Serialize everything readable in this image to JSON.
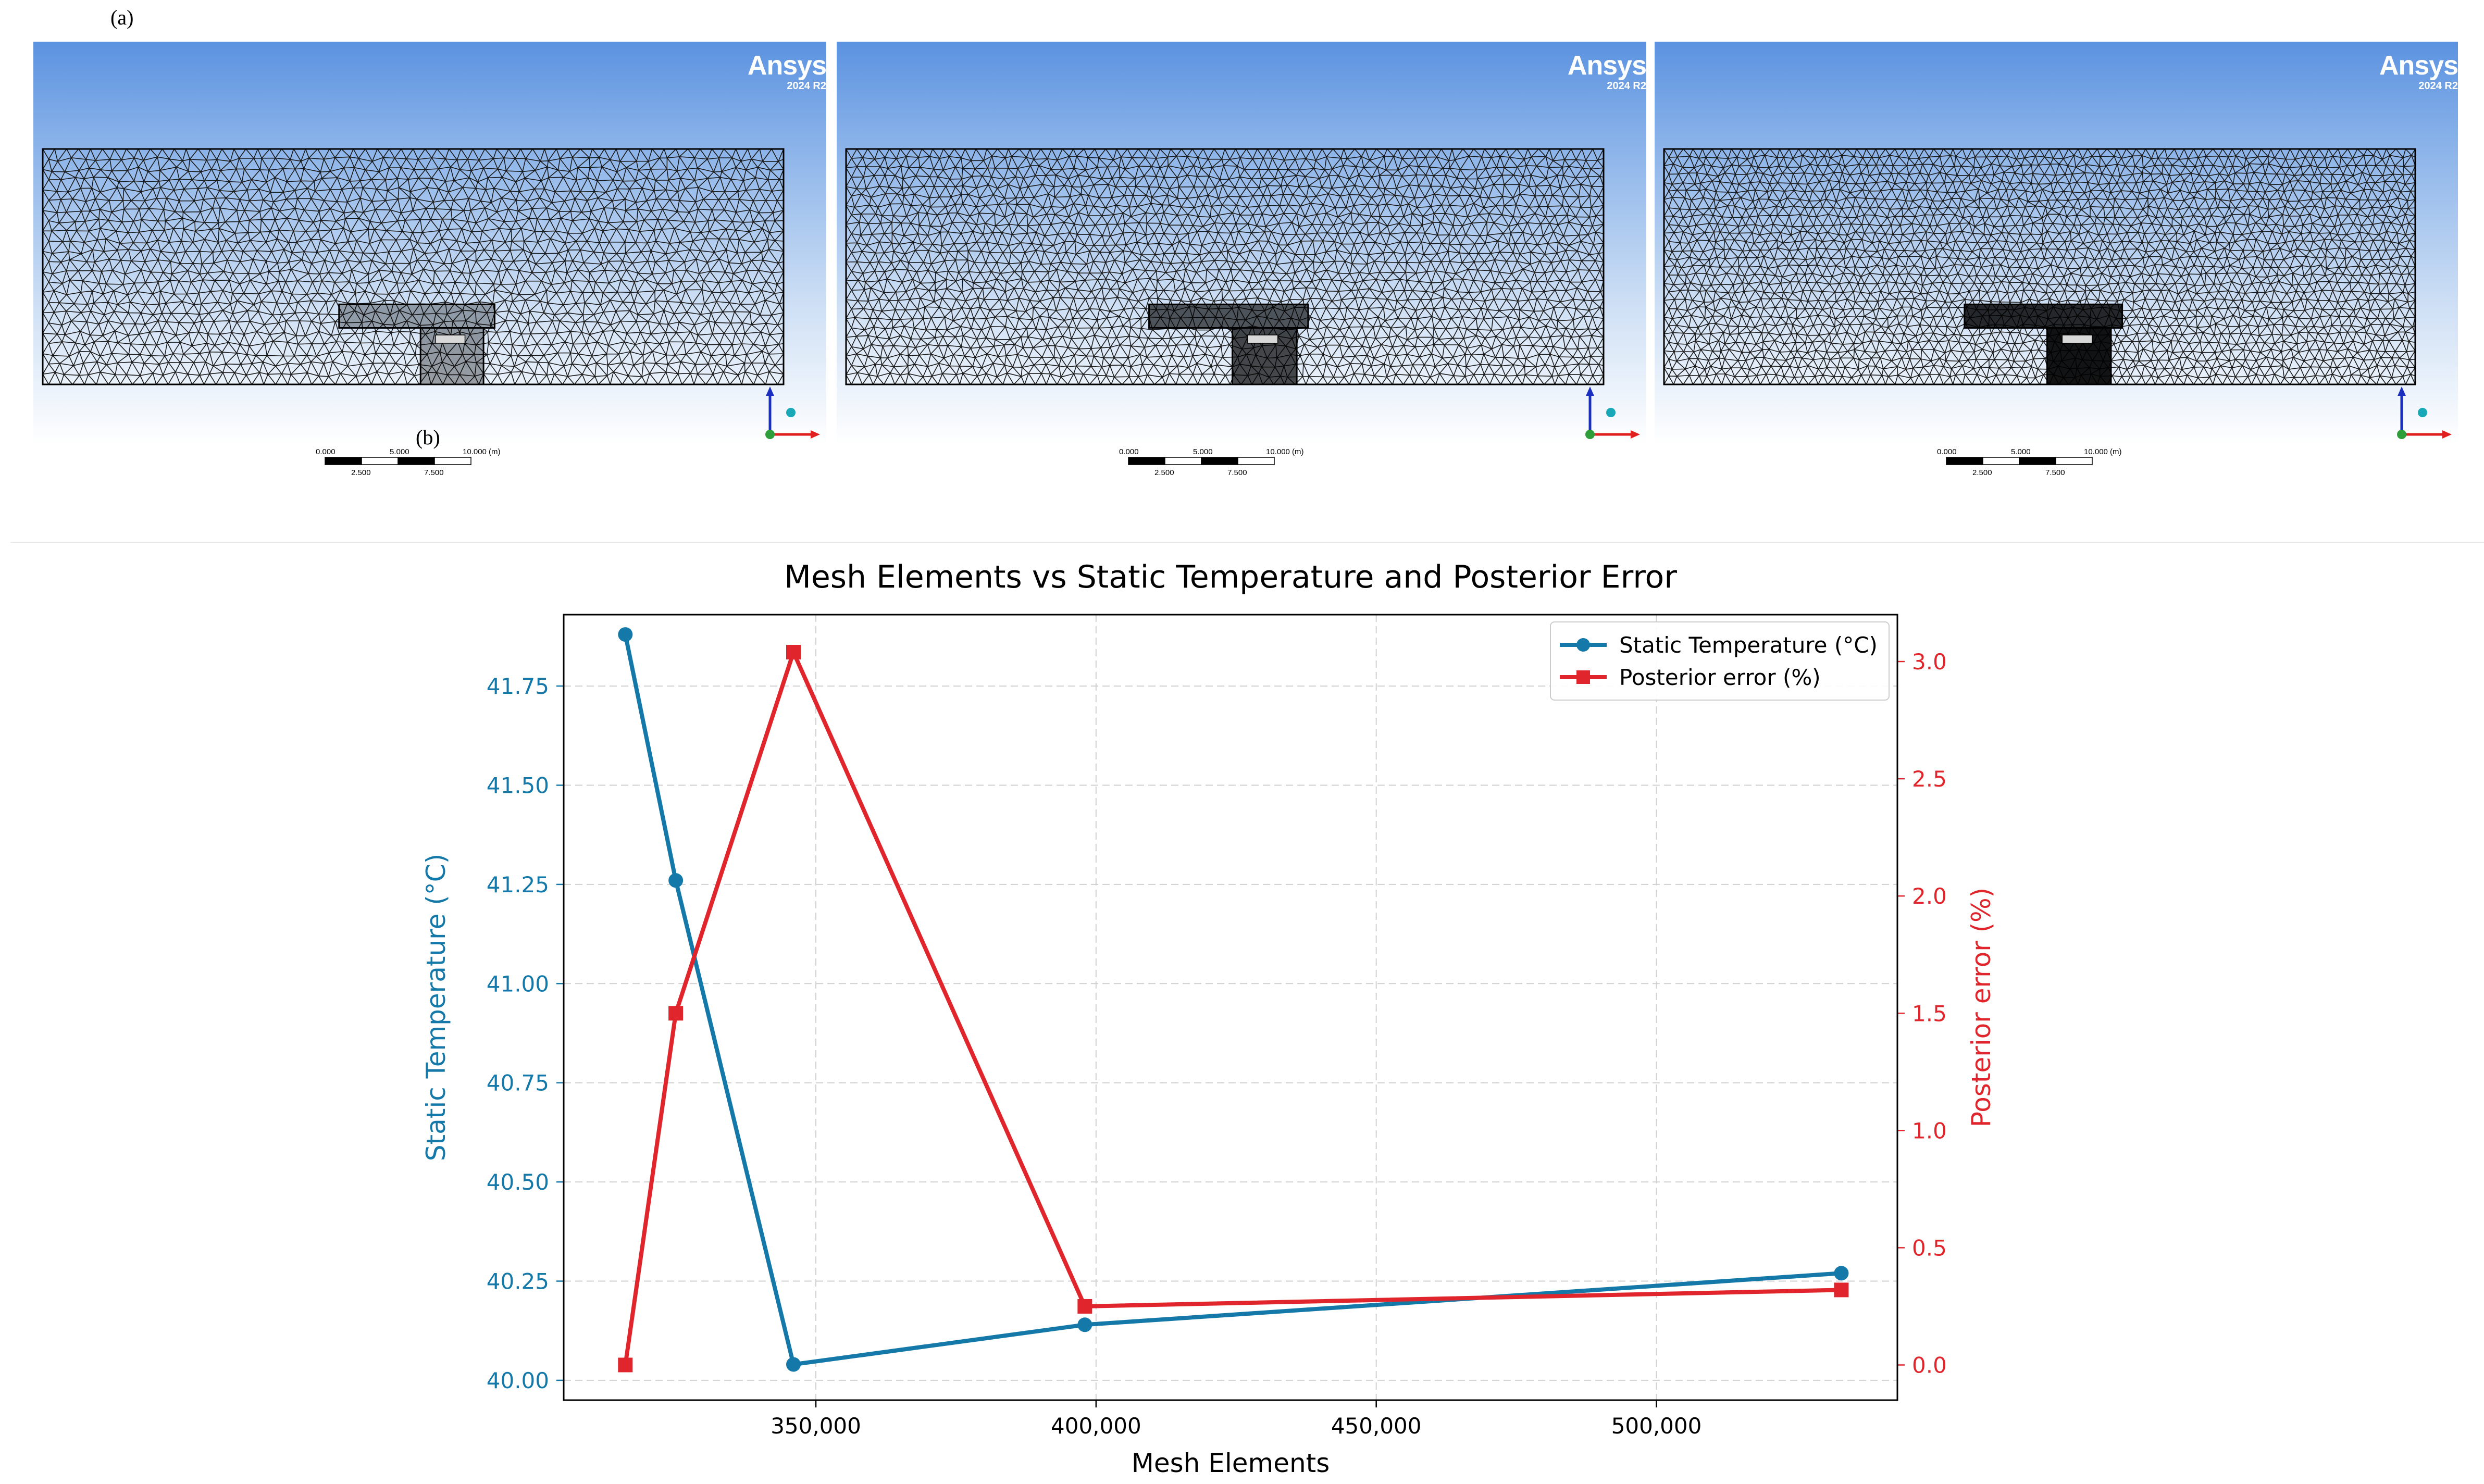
{
  "figure_labels": {
    "a": "(a)",
    "b": "(b)"
  },
  "mesh_panels": [
    {
      "brand": "Ansys",
      "version": "2024 R2",
      "scale": {
        "top": [
          "0.000",
          "5.000",
          "10.000 (m)"
        ],
        "bottom": [
          "2.500",
          "7.500"
        ]
      }
    },
    {
      "brand": "Ansys",
      "version": "2024 R2",
      "scale": {
        "top": [
          "0.000",
          "5.000",
          "10.000 (m)"
        ],
        "bottom": [
          "2.500",
          "7.500"
        ]
      }
    },
    {
      "brand": "Ansys",
      "version": "2024 R2",
      "scale": {
        "top": [
          "0.000",
          "5.000",
          "10.000 (m)"
        ],
        "bottom": [
          "2.500",
          "7.500"
        ]
      }
    }
  ],
  "colors": {
    "temperature": "#1479a8",
    "error": "#e0262c",
    "mesh": "#1a1a1a"
  },
  "chart_data": {
    "type": "line",
    "title": "Mesh Elements vs Static Temperature and Posterior Error",
    "xlabel": "Mesh Elements",
    "ylabel_left": "Static Temperature (°C)",
    "ylabel_right": "Posterior error (%)",
    "x_ticks": [
      "350,000",
      "400,000",
      "450,000",
      "500,000"
    ],
    "y_left_ticks": [
      "40.00",
      "40.25",
      "40.50",
      "40.75",
      "41.00",
      "41.25",
      "41.50",
      "41.75"
    ],
    "y_right_ticks": [
      "0.0",
      "0.5",
      "1.0",
      "1.5",
      "2.0",
      "2.5",
      "3.0"
    ],
    "xlim": [
      305000,
      543000
    ],
    "ylim_left": [
      39.95,
      41.93
    ],
    "ylim_right": [
      -0.15,
      3.2
    ],
    "grid": true,
    "legend_position": "top-right",
    "series": [
      {
        "name": "Static Temperature (°C)",
        "axis": "left",
        "marker": "circle",
        "x": [
          316000,
          325000,
          346000,
          398000,
          533000
        ],
        "values": [
          41.88,
          41.26,
          40.04,
          40.14,
          40.27
        ]
      },
      {
        "name": "Posterior error (%)",
        "axis": "right",
        "marker": "square",
        "x": [
          316000,
          325000,
          346000,
          398000,
          533000
        ],
        "values": [
          0.0,
          1.5,
          3.04,
          0.25,
          0.32
        ]
      }
    ]
  }
}
